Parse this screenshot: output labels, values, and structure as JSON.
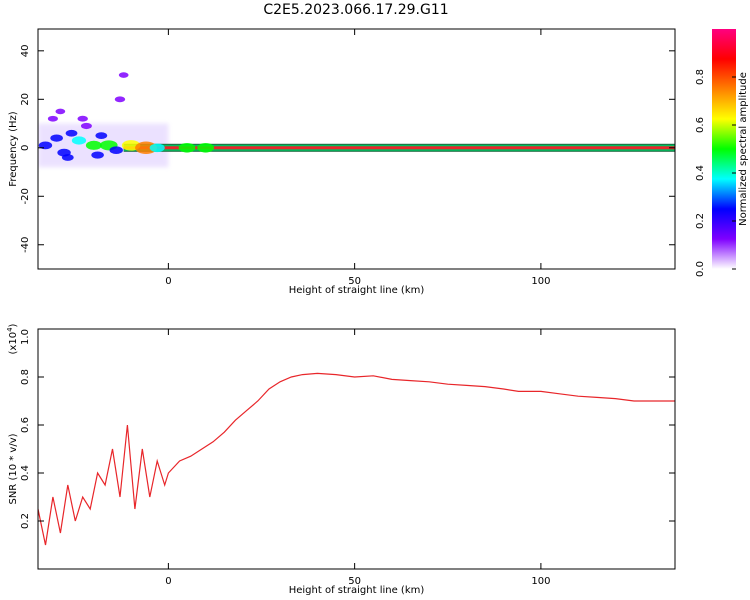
{
  "title": "C2E5.2023.066.17.29.G11",
  "chart_data": [
    {
      "type": "heatmap",
      "xlabel": "Height of straight line (km)",
      "ylabel": "Frequency (Hz)",
      "xlim": [
        -35,
        136
      ],
      "ylim": [
        -50,
        49
      ],
      "x_ticks": [
        0,
        50,
        100
      ],
      "y_ticks": [
        -40,
        -20,
        0,
        20,
        40
      ],
      "grid": false,
      "colorbar": {
        "label": "Normalized spectral amplitude",
        "range": [
          0,
          1
        ],
        "ticks": [
          0.0,
          0.2,
          0.4,
          0.6,
          0.8
        ],
        "colormap": [
          "#ffffff",
          "#7f00ff",
          "#0000ff",
          "#00ffff",
          "#00ff00",
          "#ffff00",
          "#ff8000",
          "#ff0000",
          "#ff0080"
        ]
      },
      "features": {
        "ridge_frequency_hz": 0,
        "ridge_x_start": -12,
        "ridge_x_end": 136,
        "ridge_color": "#e8262a",
        "band_color": "#00c060",
        "noise_x_range": [
          -35,
          0
        ]
      },
      "blobs": [
        {
          "x": -33,
          "y": 1,
          "v": 0.3
        },
        {
          "x": -30,
          "y": 4,
          "v": 0.25
        },
        {
          "x": -28,
          "y": -2,
          "v": 0.3
        },
        {
          "x": -26,
          "y": 6,
          "v": 0.2
        },
        {
          "x": -24,
          "y": 3,
          "v": 0.35
        },
        {
          "x": -22,
          "y": 9,
          "v": 0.15
        },
        {
          "x": -20,
          "y": 1,
          "v": 0.45
        },
        {
          "x": -18,
          "y": 5,
          "v": 0.2
        },
        {
          "x": -16,
          "y": 1,
          "v": 0.55
        },
        {
          "x": -14,
          "y": -1,
          "v": 0.3
        },
        {
          "x": -13,
          "y": 20,
          "v": 0.12
        },
        {
          "x": -12,
          "y": 30,
          "v": 0.08
        },
        {
          "x": -10,
          "y": 1,
          "v": 0.6
        },
        {
          "x": -6,
          "y": 0,
          "v": 0.8
        },
        {
          "x": -3,
          "y": 0,
          "v": 0.4
        },
        {
          "x": -31,
          "y": 12,
          "v": 0.1
        },
        {
          "x": -27,
          "y": -4,
          "v": 0.2
        },
        {
          "x": -23,
          "y": 12,
          "v": 0.12
        },
        {
          "x": -19,
          "y": -3,
          "v": 0.25
        },
        {
          "x": -29,
          "y": 15,
          "v": 0.08
        },
        {
          "x": 5,
          "y": 0,
          "v": 0.5
        },
        {
          "x": 10,
          "y": 0,
          "v": 0.5
        }
      ]
    },
    {
      "type": "line",
      "xlabel": "Height of straight line (km)",
      "ylabel": "SNR (10 * v/v)",
      "y_multiplier": "(x10",
      "y_multiplier_exp": "4",
      "y_multiplier_close": ")",
      "xlim": [
        -35,
        136
      ],
      "ylim": [
        0.0,
        1.0
      ],
      "x_ticks": [
        0,
        50,
        100
      ],
      "y_ticks": [
        0.2,
        0.4,
        0.6,
        0.8,
        1.0
      ],
      "grid": false,
      "series": [
        {
          "color": "#e8262a",
          "x": [
            -35,
            -33,
            -31,
            -29,
            -27,
            -25,
            -23,
            -21,
            -19,
            -17,
            -15,
            -13,
            -11,
            -9,
            -7,
            -5,
            -3,
            -1,
            0,
            3,
            6,
            9,
            12,
            15,
            18,
            21,
            24,
            27,
            30,
            33,
            36,
            40,
            45,
            50,
            55,
            60,
            65,
            70,
            75,
            80,
            85,
            90,
            94,
            100,
            105,
            110,
            115,
            120,
            125,
            130,
            136
          ],
          "y": [
            0.25,
            0.1,
            0.3,
            0.15,
            0.35,
            0.2,
            0.3,
            0.25,
            0.4,
            0.35,
            0.5,
            0.3,
            0.6,
            0.25,
            0.5,
            0.3,
            0.45,
            0.35,
            0.4,
            0.45,
            0.47,
            0.5,
            0.53,
            0.57,
            0.62,
            0.66,
            0.7,
            0.75,
            0.78,
            0.8,
            0.81,
            0.815,
            0.81,
            0.8,
            0.805,
            0.79,
            0.785,
            0.78,
            0.77,
            0.765,
            0.76,
            0.75,
            0.74,
            0.74,
            0.73,
            0.72,
            0.715,
            0.71,
            0.7,
            0.7,
            0.7
          ]
        }
      ]
    }
  ]
}
